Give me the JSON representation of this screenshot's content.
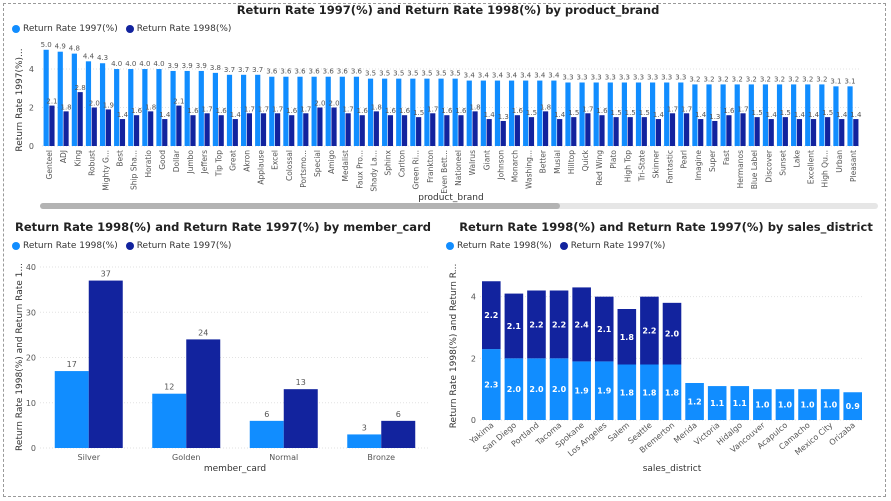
{
  "colors": {
    "light": "#118DFF",
    "dark": "#12239E",
    "grid": "#e2e2e2",
    "text": "#555555"
  },
  "charts": [
    {
      "id": "brand",
      "title": "Return Rate 1997(%) and Return Rate 1998(%) by product_brand",
      "legend": [
        "Return Rate 1997(%)",
        "Return Rate 1998(%)"
      ],
      "xlabel": "product_brand",
      "ylabel": "Return Rate 1997(%)...",
      "yticks": [
        "0",
        "2",
        "4"
      ]
    },
    {
      "id": "member",
      "title": "Return Rate 1998(%) and Return Rate 1997(%) by member_card",
      "legend": [
        "Return Rate 1998(%)",
        "Return Rate 1997(%)"
      ],
      "xlabel": "member_card",
      "ylabel": "Return Rate 1998(%) and Return Rate 1...",
      "yticks": [
        "0",
        "10",
        "20",
        "30",
        "40"
      ]
    },
    {
      "id": "district",
      "title": "Return Rate 1998(%) and Return Rate 1997(%) by sales_district",
      "legend": [
        "Return Rate 1998(%)",
        "Return Rate 1997(%)"
      ],
      "xlabel": "sales_district",
      "ylabel": "Return Rate 1998(%) and Return R...",
      "yticks": [
        "0",
        "2",
        "4"
      ]
    }
  ],
  "chart_data": [
    {
      "type": "bar",
      "title": "Return Rate 1997(%) and Return Rate 1998(%) by product_brand",
      "xlabel": "product_brand",
      "ylabel": "Return Rate 1997(%)...",
      "ylim": [
        0,
        5.3
      ],
      "categories": [
        "Genteel",
        "ADJ",
        "King",
        "Robust",
        "Mighty G...",
        "Best",
        "Ship Sha...",
        "Horatio",
        "Good",
        "Dollar",
        "Jumbo",
        "Jeffers",
        "Tip Top",
        "Great",
        "Akron",
        "Applause",
        "Excel",
        "Colossal",
        "Portsmo...",
        "Special",
        "Amigo",
        "Medalist",
        "Faux Pro...",
        "Shady La...",
        "Sphinx",
        "Carlton",
        "Green Ri...",
        "Frankton",
        "Even Bett...",
        "Nationeel",
        "Walrus",
        "Giant",
        "Johnson",
        "Monarch",
        "Washing...",
        "Better",
        "Musial",
        "Hilltop",
        "Quick",
        "Red Wing",
        "Plato",
        "High Top",
        "Tri-State",
        "Skinner",
        "Fantastic",
        "Pearl",
        "Imagine",
        "Super",
        "Fast",
        "Hermanos",
        "Blue Label",
        "Discover",
        "Sunset",
        "Lake",
        "Excellent",
        "High Qu...",
        "Urban",
        "Pleasant"
      ],
      "series": [
        {
          "name": "Return Rate 1997(%)",
          "values": [
            5.0,
            4.9,
            4.8,
            4.4,
            4.3,
            4.0,
            4.0,
            4.0,
            4.0,
            3.9,
            3.9,
            3.9,
            3.8,
            3.7,
            3.7,
            3.7,
            3.6,
            3.6,
            3.6,
            3.6,
            3.6,
            3.6,
            3.6,
            3.5,
            3.5,
            3.5,
            3.5,
            3.5,
            3.5,
            3.5,
            3.4,
            3.4,
            3.4,
            3.4,
            3.4,
            3.4,
            3.4,
            3.3,
            3.3,
            3.3,
            3.3,
            3.3,
            3.3,
            3.3,
            3.3,
            3.3,
            3.2,
            3.2,
            3.2,
            3.2,
            3.2,
            3.2,
            3.2,
            3.2,
            3.2,
            3.2,
            3.1,
            3.1
          ]
        },
        {
          "name": "Return Rate 1998(%)",
          "values": [
            2.1,
            1.8,
            2.8,
            2.0,
            1.9,
            1.4,
            1.6,
            1.8,
            1.4,
            2.1,
            1.6,
            1.7,
            1.6,
            1.4,
            1.7,
            1.7,
            1.7,
            1.6,
            1.7,
            2.0,
            2.0,
            1.7,
            1.6,
            1.8,
            1.6,
            1.6,
            1.5,
            1.7,
            1.6,
            1.6,
            1.8,
            1.4,
            1.3,
            1.6,
            1.5,
            1.8,
            1.4,
            1.5,
            1.7,
            1.6,
            1.5,
            1.5,
            1.5,
            1.4,
            1.7,
            1.7,
            1.4,
            1.3,
            1.6,
            1.7,
            1.5,
            1.4,
            1.5,
            1.4,
            1.4,
            1.5,
            1.4,
            1.4
          ]
        }
      ],
      "value_labels_1997": [
        "5.0",
        "4.9",
        "4.8",
        "4.4",
        "4.3",
        "4.0",
        "4.0",
        "4.0",
        "4.0",
        "3.9",
        "3.9",
        "3.9",
        "3.8",
        "3.7",
        "3.7",
        "3.7",
        "3.6",
        "3.6",
        "3.6",
        "3.6",
        "3.6",
        "3.6",
        "3.6",
        "3.5",
        "3.5",
        "3.5",
        "3.5",
        "3.5",
        "3.5",
        "3.5",
        "3.4",
        "3.4",
        "3.4",
        "3.4",
        "3.4",
        "3.4",
        "3.4",
        "3.3",
        "3.3",
        "3.3",
        "3.3",
        "3.3",
        "3.3",
        "3.3",
        "3.3",
        "3.3",
        "3.2",
        "3.2",
        "3.2",
        "3.2",
        "3.2",
        "3.2",
        "3.2",
        "3.2",
        "3.2",
        "3.2",
        "3.1",
        "3.1"
      ],
      "value_labels_1998": [
        "2.1",
        "1.8",
        "2.8",
        "2.0",
        "1.9",
        "1.4",
        "1.6",
        "1.8",
        "1.4",
        "2.1",
        "1.6",
        "1.7",
        "1.6",
        "1.4",
        "1.7",
        "1.7",
        "1.7",
        "1.6",
        "1.7",
        "2.0",
        "2.0",
        "1.7",
        "1.6",
        "1.8",
        "1.6",
        "1.6",
        "1.5",
        "1.7",
        "1.6",
        "1.6",
        "1.8",
        "1.4",
        "1.3",
        "1.6",
        "1.5",
        "1.8",
        "1.4",
        "1.5",
        "1.7",
        "1.6",
        "1.5",
        "1.5",
        "1.5",
        "1.4",
        "1.7",
        "1.7",
        "1.4",
        "1.3",
        "1.6",
        "1.7",
        "1.5",
        "1.4",
        "1.5",
        "1.4",
        "1.4",
        "1.5",
        "1.4",
        "1.4"
      ]
    },
    {
      "type": "bar",
      "title": "Return Rate 1998(%) and Return Rate 1997(%) by member_card",
      "xlabel": "member_card",
      "ylabel": "Return Rate 1998(%) and Return Rate 1...",
      "ylim": [
        0,
        40
      ],
      "categories": [
        "Silver",
        "Golden",
        "Normal",
        "Bronze"
      ],
      "series": [
        {
          "name": "Return Rate 1998(%)",
          "values": [
            17,
            12,
            6,
            3
          ],
          "labels": [
            "17",
            "12",
            "6",
            "3"
          ]
        },
        {
          "name": "Return Rate 1997(%)",
          "values": [
            37,
            24,
            13,
            6
          ],
          "labels": [
            "37",
            "24",
            "13",
            "6"
          ]
        }
      ]
    },
    {
      "type": "bar",
      "stacked": true,
      "title": "Return Rate 1998(%) and Return Rate 1997(%) by sales_district",
      "xlabel": "sales_district",
      "ylabel": "Return Rate 1998(%) and Return R...",
      "ylim": [
        0,
        4.8
      ],
      "categories": [
        "Yakima",
        "San Diego",
        "Portland",
        "Tacoma",
        "Spokane",
        "Los Angeles",
        "Salem",
        "Seattle",
        "Bremerton",
        "Merida",
        "Victoria",
        "Hidalgo",
        "Vancouver",
        "Acapulco",
        "Camacho",
        "Mexico City",
        "Orizaba"
      ],
      "series": [
        {
          "name": "Return Rate 1998(%)",
          "values": [
            2.3,
            2.0,
            2.0,
            2.0,
            1.9,
            1.9,
            1.8,
            1.8,
            1.8,
            1.2,
            1.1,
            1.1,
            1.0,
            1.0,
            1.0,
            1.0,
            0.9
          ],
          "labels": [
            "2.3",
            "2.0",
            "2.0",
            "2.0",
            "1.9",
            "1.9",
            "1.8",
            "1.8",
            "1.8",
            "1.2",
            "1.1",
            "1.1",
            "1.0",
            "1.0",
            "1.0",
            "1.0",
            "0.9"
          ]
        },
        {
          "name": "Return Rate 1997(%)",
          "values": [
            2.2,
            2.1,
            2.2,
            2.2,
            2.4,
            2.1,
            1.8,
            2.2,
            2.0,
            0,
            0,
            0,
            0,
            0,
            0,
            0,
            0
          ],
          "labels": [
            "2.2",
            "2.1",
            "2.2",
            "2.2",
            "2.4",
            "2.1",
            "1.8",
            "2.2",
            "2.0",
            "",
            "",
            "",
            "",
            "",
            "",
            "",
            ""
          ]
        }
      ]
    }
  ]
}
